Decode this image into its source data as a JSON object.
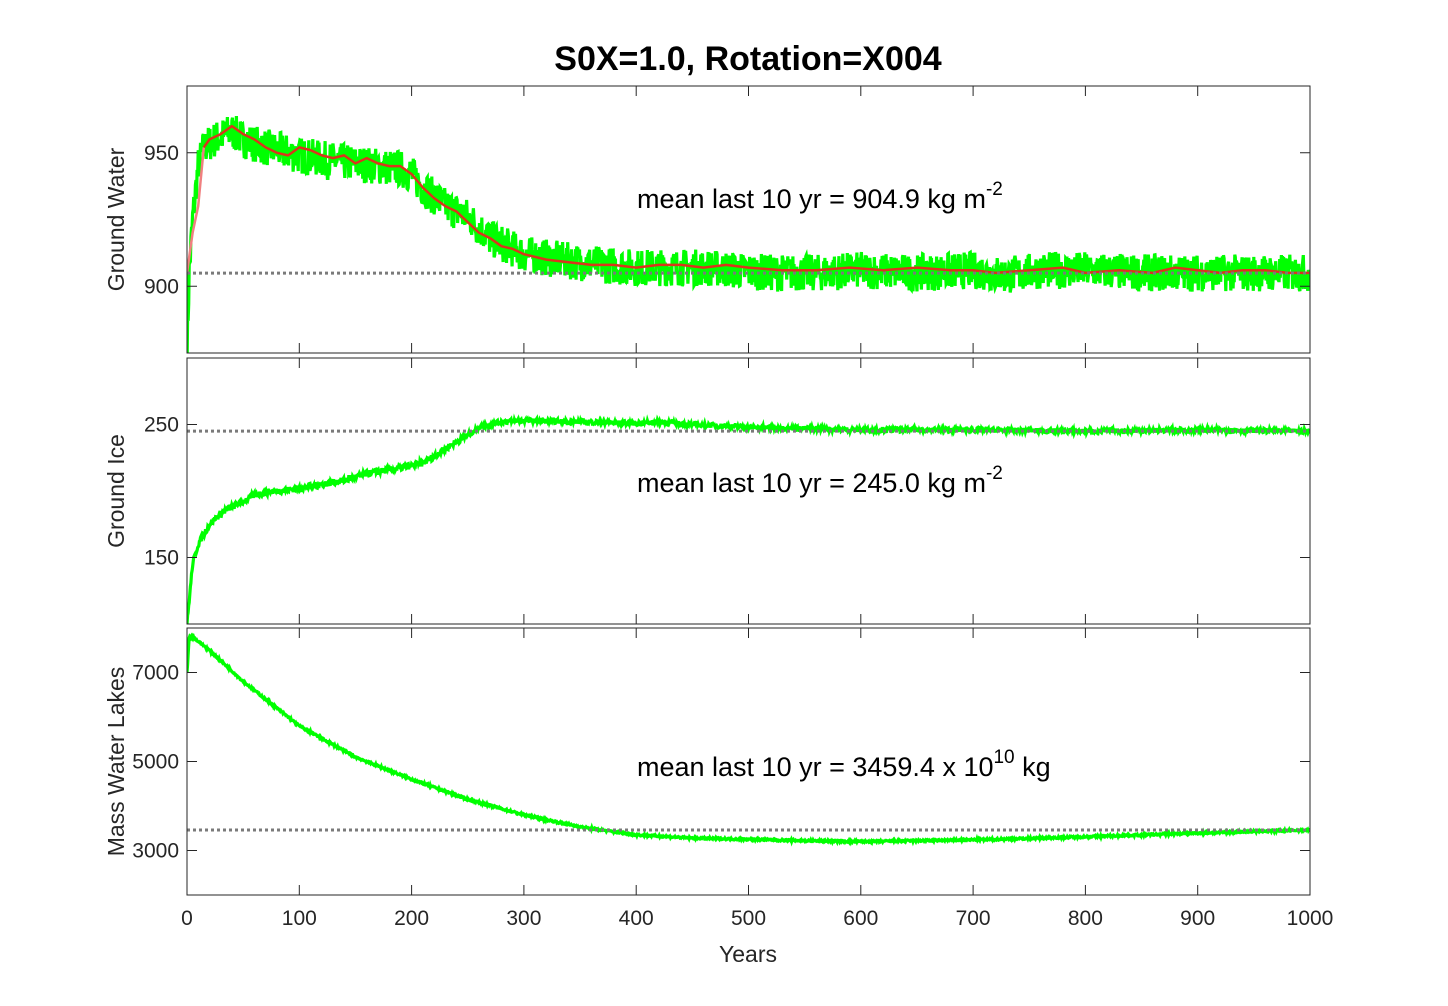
{
  "chart_data": {
    "type": "line",
    "title": "S0X=1.0, Rotation=X004",
    "xlabel": "Years",
    "xlim": [
      0,
      1000
    ],
    "x_ticks": [
      "0",
      "100",
      "200",
      "300",
      "400",
      "500",
      "600",
      "700",
      "800",
      "900",
      "1000"
    ],
    "colors": {
      "raw": "#00ff00",
      "smooth": "#d9351c",
      "smooth_early": "#f08080",
      "mean_line": "#7a7a7a"
    },
    "panels": [
      {
        "ylabel": "Ground Water",
        "ylim": [
          875,
          975
        ],
        "y_ticks": [
          "900",
          "950"
        ],
        "mean_value": 904.9,
        "annotation_prefix": "mean last 10 yr = 904.9 kg m",
        "annotation_sup": "-2",
        "annotation_suffix": "",
        "noise": 7,
        "series": [
          {
            "name": "raw",
            "x": [
              0,
              2,
              5,
              10,
              15,
              25,
              40,
              50,
              70,
              100,
              130,
              150,
              170,
              190,
              200,
              210,
              230,
              250,
              270,
              300,
              330,
              350,
              370,
              400,
              430,
              460,
              490,
              520,
              560,
              600,
              650,
              700,
              730,
              760,
              800,
              850,
              900,
              950,
              1000
            ],
            "y": [
              875,
              905,
              925,
              945,
              952,
              955,
              958,
              955,
              952,
              949,
              947,
              946,
              945,
              944,
              942,
              937,
              930,
              926,
              918,
              912,
              910,
              909,
              908,
              907,
              907,
              907,
              906,
              905,
              905,
              906,
              905,
              906,
              904,
              906,
              906,
              905,
              905,
              905,
              905
            ]
          },
          {
            "name": "running-mean",
            "x": [
              0,
              5,
              10,
              15,
              20,
              30,
              40,
              50,
              60,
              70,
              80,
              90,
              100,
              110,
              120,
              130,
              140,
              150,
              160,
              170,
              180,
              190,
              200,
              210,
              220,
              230,
              240,
              250,
              260,
              270,
              280,
              290,
              300,
              320,
              340,
              360,
              380,
              400,
              420,
              440,
              460,
              480,
              500,
              530,
              560,
              590,
              620,
              650,
              680,
              700,
              720,
              750,
              780,
              800,
              830,
              860,
              880,
              900,
              920,
              940,
              960,
              980,
              1000
            ],
            "y": [
              905,
              920,
              930,
              952,
              955,
              957,
              960,
              957,
              955,
              952,
              950,
              949,
              952,
              951,
              949,
              948,
              949,
              946,
              948,
              946,
              945,
              945,
              942,
              937,
              933,
              930,
              928,
              924,
              920,
              918,
              915,
              914,
              912,
              910,
              909,
              908,
              908,
              907,
              908,
              908,
              907,
              908,
              907,
              906,
              906,
              907,
              906,
              907,
              906,
              906,
              905,
              906,
              907,
              905,
              906,
              905,
              907,
              906,
              905,
              906,
              906,
              905,
              905
            ]
          }
        ]
      },
      {
        "ylabel": "Ground Ice",
        "ylim": [
          100,
          300
        ],
        "y_ticks": [
          "150",
          "250"
        ],
        "mean_value": 245.0,
        "annotation_prefix": "mean last 10 yr = 245.0 kg m",
        "annotation_sup": "-2",
        "annotation_suffix": "",
        "noise": 1.6,
        "series": [
          {
            "name": "raw",
            "x": [
              0,
              5,
              10,
              20,
              30,
              40,
              50,
              60,
              70,
              80,
              100,
              120,
              140,
              160,
              180,
              200,
              210,
              220,
              230,
              240,
              250,
              260,
              270,
              280,
              300,
              350,
              400,
              420,
              450,
              500,
              550,
              600,
              700,
              800,
              900,
              1000
            ],
            "y": [
              100,
              145,
              160,
              175,
              183,
              188,
              192,
              197,
              199,
              200,
              202,
              205,
              208,
              213,
              216,
              219,
              221,
              226,
              232,
              237,
              242,
              248,
              250,
              252,
              253,
              252,
              251,
              252,
              250,
              248,
              247,
              246,
              246,
              245,
              246,
              245
            ]
          }
        ]
      },
      {
        "ylabel": "Mass Water Lakes",
        "ylim": [
          2000,
          8000
        ],
        "y_ticks": [
          "3000",
          "5000",
          "7000"
        ],
        "mean_value": 3459.4,
        "annotation_prefix": "mean last 10 yr = 3459.4 x 10",
        "annotation_sup": "10",
        "annotation_suffix": " kg",
        "noise": 22,
        "series": [
          {
            "name": "raw",
            "x": [
              0,
              2,
              5,
              20,
              50,
              100,
              150,
              200,
              250,
              300,
              350,
              400,
              450,
              500,
              550,
              600,
              650,
              700,
              750,
              800,
              850,
              900,
              950,
              1000
            ],
            "y": [
              7000,
              7800,
              7800,
              7500,
              6800,
              5800,
              5100,
              4600,
              4150,
              3800,
              3530,
              3350,
              3280,
              3250,
              3220,
              3200,
              3220,
              3240,
              3270,
              3310,
              3350,
              3390,
              3430,
              3460
            ]
          }
        ]
      }
    ]
  }
}
